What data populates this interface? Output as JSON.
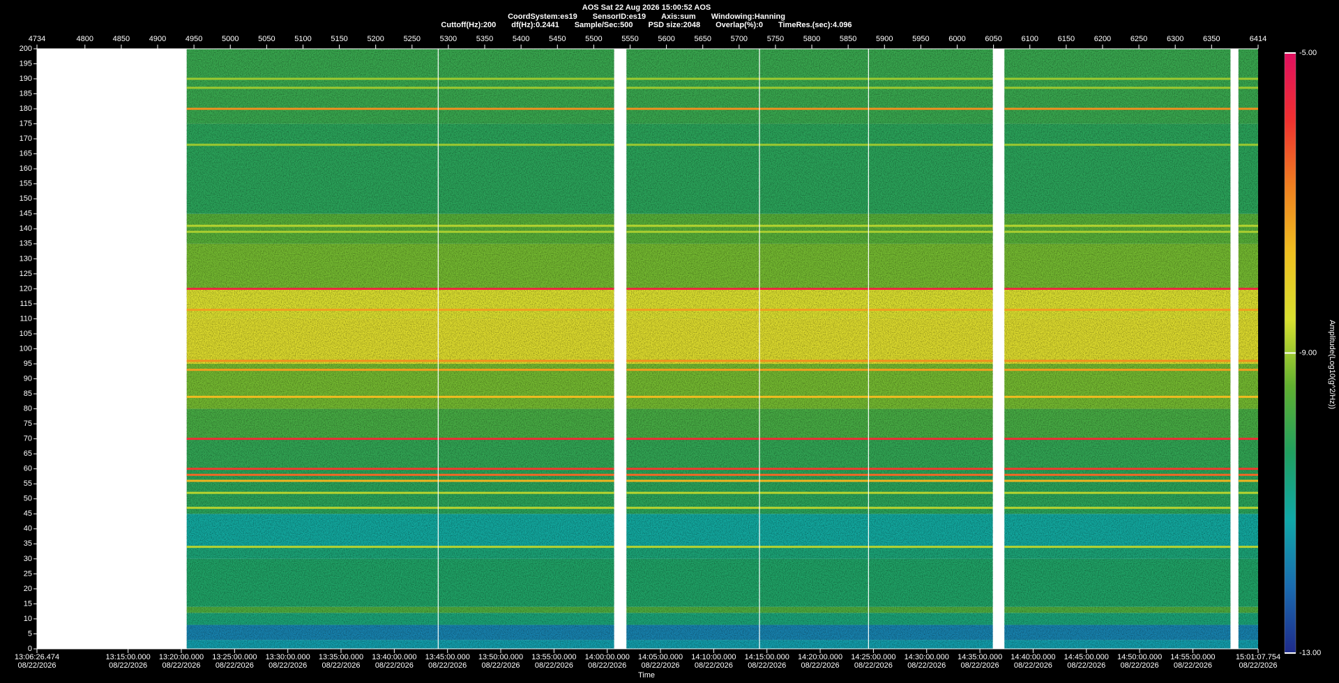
{
  "chart_data": {
    "type": "spectrogram",
    "header": [
      [
        "AOS  Sat 22 Aug 2026 15:00:52  AOS"
      ],
      [
        "CoordSystem:es19",
        "SensorID:es19",
        "Axis:sum",
        "Windowing:Hanning"
      ],
      [
        "Cuttoff(Hz):200",
        "df(Hz):0.2441",
        "Sample/Sec:500",
        "PSD size:2048",
        "Overlap(%):0",
        "TimeRes.(sec):4.096"
      ]
    ],
    "xlabel": "Time",
    "colorbar_label": "Amplitude(Log10(g^2/Hz))",
    "xlim": [
      4734,
      6414
    ],
    "xticks": [
      4734,
      4800,
      4850,
      4900,
      4950,
      5000,
      5050,
      5100,
      5150,
      5200,
      5250,
      5300,
      5350,
      5400,
      5450,
      5500,
      5550,
      5600,
      5650,
      5700,
      5750,
      5800,
      5850,
      5900,
      5950,
      6000,
      6050,
      6100,
      6150,
      6200,
      6250,
      6300,
      6350,
      6414
    ],
    "time_lim": [
      47186.474,
      54067.754
    ],
    "time_ticks": [
      {
        "value": 47186.474,
        "label": "13:06:26.474",
        "date": "08/22/2026"
      },
      {
        "value": 47700,
        "label": "13:15:00.000",
        "date": "08/22/2026"
      },
      {
        "value": 48000,
        "label": "13:20:00.000",
        "date": "08/22/2026"
      },
      {
        "value": 48300,
        "label": "13:25:00.000",
        "date": "08/22/2026"
      },
      {
        "value": 48600,
        "label": "13:30:00.000",
        "date": "08/22/2026"
      },
      {
        "value": 48900,
        "label": "13:35:00.000",
        "date": "08/22/2026"
      },
      {
        "value": 49200,
        "label": "13:40:00.000",
        "date": "08/22/2026"
      },
      {
        "value": 49500,
        "label": "13:45:00.000",
        "date": "08/22/2026"
      },
      {
        "value": 49800,
        "label": "13:50:00.000",
        "date": "08/22/2026"
      },
      {
        "value": 50100,
        "label": "13:55:00.000",
        "date": "08/22/2026"
      },
      {
        "value": 50400,
        "label": "14:00:00.000",
        "date": "08/22/2026"
      },
      {
        "value": 50700,
        "label": "14:05:00.000",
        "date": "08/22/2026"
      },
      {
        "value": 51000,
        "label": "14:10:00.000",
        "date": "08/22/2026"
      },
      {
        "value": 51300,
        "label": "14:15:00.000",
        "date": "08/22/2026"
      },
      {
        "value": 51600,
        "label": "14:20:00.000",
        "date": "08/22/2026"
      },
      {
        "value": 51900,
        "label": "14:25:00.000",
        "date": "08/22/2026"
      },
      {
        "value": 52200,
        "label": "14:30:00.000",
        "date": "08/22/2026"
      },
      {
        "value": 52500,
        "label": "14:35:00.000",
        "date": "08/22/2026"
      },
      {
        "value": 52800,
        "label": "14:40:00.000",
        "date": "08/22/2026"
      },
      {
        "value": 53100,
        "label": "14:45:00.000",
        "date": "08/22/2026"
      },
      {
        "value": 53400,
        "label": "14:50:00.000",
        "date": "08/22/2026"
      },
      {
        "value": 53700,
        "label": "14:55:00.000",
        "date": "08/22/2026"
      },
      {
        "value": 54067.754,
        "label": "15:01:07.754",
        "date": "08/22/2026"
      }
    ],
    "ylim": [
      0,
      200
    ],
    "yticks": [
      0,
      5,
      10,
      15,
      20,
      25,
      30,
      35,
      40,
      45,
      50,
      55,
      60,
      65,
      70,
      75,
      80,
      85,
      90,
      95,
      100,
      105,
      110,
      115,
      120,
      125,
      130,
      135,
      140,
      145,
      150,
      155,
      160,
      165,
      170,
      175,
      180,
      185,
      190,
      195,
      200
    ],
    "zlim": [
      -13,
      -5
    ],
    "zticks": [
      {
        "value": -5,
        "label": "-5.00"
      },
      {
        "value": -9,
        "label": "-9.00"
      },
      {
        "value": -13,
        "label": "-13.00"
      }
    ],
    "colormap": [
      "#1e2a8a",
      "#1a6cb0",
      "#10a8a8",
      "#20a060",
      "#60b030",
      "#d8e030",
      "#f0c020",
      "#f08020",
      "#f03030",
      "#e01060"
    ],
    "segments": [
      [
        4940,
        5528
      ],
      [
        5545,
        6049
      ],
      [
        6065,
        6376
      ],
      [
        6387,
        6414
      ]
    ],
    "event_lines": [
      5286,
      5728,
      5878
    ],
    "bands": [
      {
        "low": 0,
        "high": 3,
        "amplitude": -11.4
      },
      {
        "low": 3,
        "high": 8,
        "amplitude": -11.8
      },
      {
        "low": 8,
        "high": 12,
        "amplitude": -10.6
      },
      {
        "low": 12,
        "high": 14,
        "amplitude": -9.7
      },
      {
        "low": 14,
        "high": 30,
        "amplitude": -10.4
      },
      {
        "low": 30,
        "high": 34,
        "amplitude": -10.6
      },
      {
        "low": 34,
        "high": 45,
        "amplitude": -11.1
      },
      {
        "low": 45,
        "high": 60,
        "amplitude": -10.2
      },
      {
        "low": 60,
        "high": 70,
        "amplitude": -10.1
      },
      {
        "low": 70,
        "high": 80,
        "amplitude": -9.8
      },
      {
        "low": 80,
        "high": 95,
        "amplitude": -9.3
      },
      {
        "low": 95,
        "high": 110,
        "amplitude": -8.4
      },
      {
        "low": 110,
        "high": 120,
        "amplitude": -8.5
      },
      {
        "low": 120,
        "high": 135,
        "amplitude": -9.3
      },
      {
        "low": 135,
        "high": 145,
        "amplitude": -9.6
      },
      {
        "low": 145,
        "high": 175,
        "amplitude": -10.2
      },
      {
        "low": 175,
        "high": 200,
        "amplitude": -10
      }
    ],
    "tones": [
      {
        "frequency": 120,
        "amplitude": -5.6
      },
      {
        "frequency": 70,
        "amplitude": -5.8
      },
      {
        "frequency": 60,
        "amplitude": -6
      },
      {
        "frequency": 58,
        "amplitude": -6.5
      },
      {
        "frequency": 56,
        "amplitude": -7.5
      },
      {
        "frequency": 180,
        "amplitude": -7
      },
      {
        "frequency": 96,
        "amplitude": -7
      },
      {
        "frequency": 93,
        "amplitude": -7.2
      },
      {
        "frequency": 113,
        "amplitude": -7.2
      },
      {
        "frequency": 84,
        "amplitude": -7.6
      },
      {
        "frequency": 34,
        "amplitude": -8.8
      },
      {
        "frequency": 47,
        "amplitude": -8.8
      },
      {
        "frequency": 52,
        "amplitude": -8.8
      },
      {
        "frequency": 141,
        "amplitude": -8.8
      },
      {
        "frequency": 139,
        "amplitude": -8.9
      },
      {
        "frequency": 168,
        "amplitude": -9
      },
      {
        "frequency": 187,
        "amplitude": -9
      },
      {
        "frequency": 190,
        "amplitude": -9
      }
    ]
  }
}
